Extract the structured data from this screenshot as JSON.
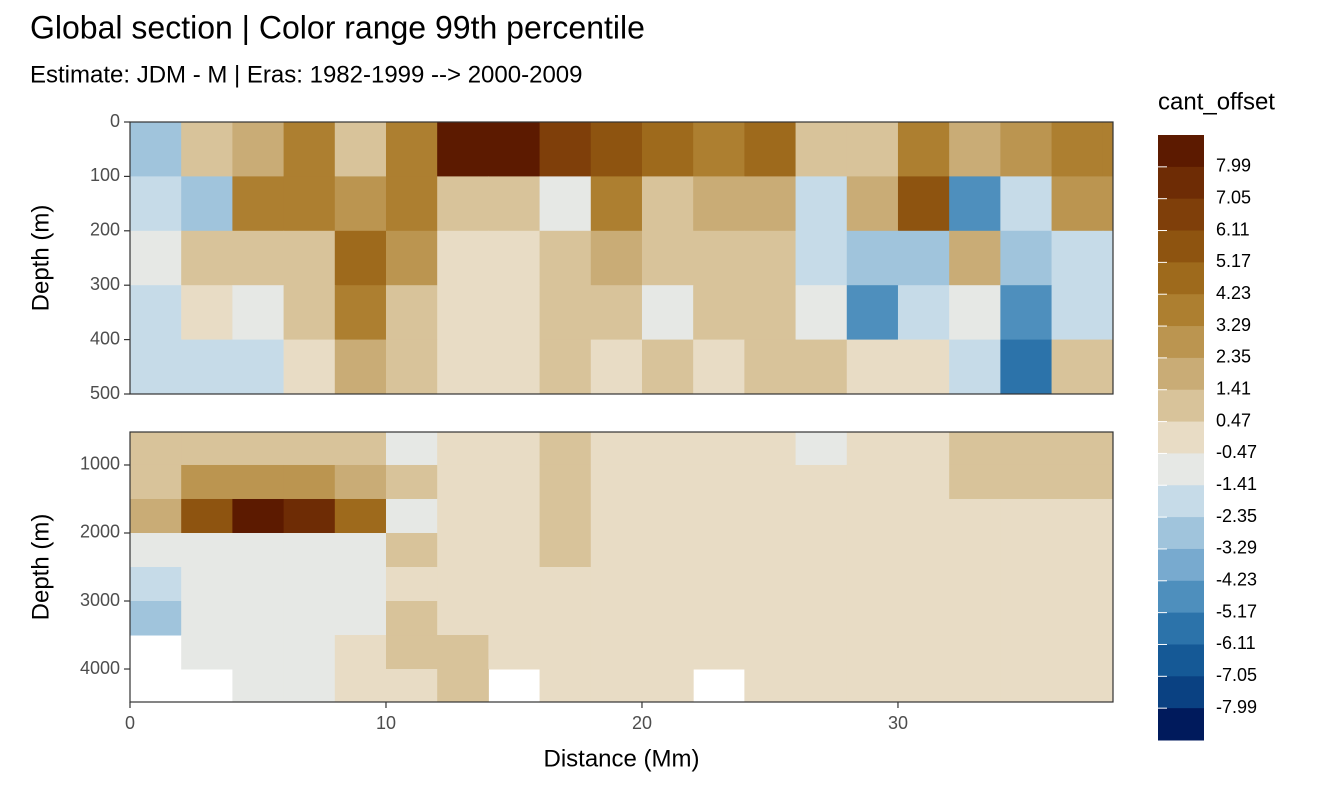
{
  "chart_data": [
    {
      "type": "contour",
      "title": "Global section | Color range 99th percentile",
      "subtitle": "Estimate: JDM - M | Eras: 1982-1999 --> 2000-2009",
      "ylabel": "Depth (m)",
      "xlim": [
        0,
        38.4
      ],
      "ylim": [
        500,
        0
      ],
      "yticks": [
        0,
        100,
        200,
        300,
        400,
        500
      ],
      "legend": {
        "title": "cant_offset",
        "levels": [
          7.99,
          7.05,
          6.11,
          5.17,
          4.23,
          3.29,
          2.35,
          1.41,
          0.47,
          -0.47,
          -1.41,
          -2.35,
          -3.29,
          -4.23,
          -5.17,
          -6.11,
          -7.05,
          -7.99
        ],
        "colors": [
          "#5c1a00",
          "#6e2c05",
          "#7f3f0a",
          "#8e5410",
          "#9e6a1c",
          "#ad7f30",
          "#bb9550",
          "#c9ac76",
          "#d8c39a",
          "#e8dcc5",
          "#e6e8e5",
          "#c6dbe8",
          "#a0c4dc",
          "#78aacf",
          "#4e8fbd",
          "#2c73aa",
          "#155996",
          "#0a4182",
          "#001a5c"
        ]
      },
      "x": [
        1,
        3,
        5,
        7,
        9,
        11,
        13,
        15,
        17,
        19,
        21,
        23,
        25,
        27,
        29,
        31,
        33,
        35,
        37,
        39
      ],
      "y": [
        50,
        150,
        250,
        350,
        450
      ],
      "z": [
        [
          -3,
          1,
          1.5,
          4,
          1,
          4,
          8.5,
          8.5,
          6.5,
          5.5,
          4.5,
          3.5,
          4.5,
          1,
          1,
          3.5,
          2,
          3,
          3.5,
          3.5
        ],
        [
          -2,
          -2.5,
          3.5,
          4,
          3,
          3.5,
          1,
          1,
          -0.8,
          3.5,
          1,
          2,
          2,
          -2,
          2,
          5.5,
          -4.5,
          -2,
          3,
          3
        ],
        [
          -0.8,
          0.8,
          1,
          1,
          4.5,
          2.5,
          0,
          0,
          1,
          1.5,
          1,
          1,
          1,
          -2,
          -3,
          -3,
          2,
          -3,
          -2,
          -2
        ],
        [
          -1.5,
          0,
          -0.8,
          1,
          3.5,
          1,
          0,
          0,
          1,
          1,
          -0.8,
          1,
          1,
          -0.8,
          -5,
          -2,
          -0.8,
          -5,
          -2,
          -2
        ],
        [
          -1.5,
          -1.5,
          -2,
          0,
          2,
          1,
          0,
          0,
          1,
          0,
          1,
          0,
          1,
          1,
          0,
          0,
          -1.5,
          -6,
          1,
          1
        ]
      ]
    },
    {
      "type": "contour",
      "ylabel": "Depth (m)",
      "xlabel": "Distance (Mm)",
      "xlim": [
        0,
        38.4
      ],
      "xticks": [
        0,
        10,
        20,
        30
      ],
      "ylim": [
        4485,
        515
      ],
      "yticks": [
        1000,
        2000,
        3000,
        4000
      ],
      "x": [
        1,
        3,
        5,
        7,
        9,
        11,
        13,
        15,
        17,
        19,
        21,
        23,
        25,
        27,
        29,
        31,
        33,
        35,
        37,
        39
      ],
      "y": [
        750,
        1250,
        1750,
        2250,
        2750,
        3250,
        3750,
        4250
      ],
      "z": [
        [
          1,
          1,
          1,
          1,
          1,
          -0.8,
          0,
          0,
          1,
          0,
          0,
          0,
          0,
          -0.8,
          0,
          0,
          1,
          1,
          1,
          1
        ],
        [
          1,
          3,
          2.5,
          2.5,
          2,
          1,
          0,
          0,
          1,
          0,
          0,
          0,
          0,
          0,
          0,
          0,
          1,
          1,
          1,
          1
        ],
        [
          2,
          5.5,
          8.5,
          7.5,
          4.5,
          -0.8,
          0,
          0,
          1,
          0,
          0,
          0,
          0,
          0,
          0,
          0,
          0,
          0,
          0,
          0
        ],
        [
          -0.8,
          -0.8,
          -0.8,
          -0.8,
          -0.8,
          1,
          0,
          0,
          1,
          0,
          0,
          0,
          0,
          0,
          0,
          0,
          0,
          0,
          0,
          0
        ],
        [
          -2,
          -0.8,
          -0.8,
          -0.8,
          -0.8,
          0,
          0,
          0,
          0,
          0,
          0,
          0,
          0,
          0,
          0,
          0,
          0,
          0,
          0,
          0
        ],
        [
          -3,
          -0.8,
          -0.8,
          -0.8,
          -0.8,
          1,
          0,
          0,
          0,
          0,
          0,
          0,
          0,
          0,
          0,
          0,
          0,
          0,
          0,
          0
        ],
        [
          null,
          -0.8,
          -0.8,
          -0.8,
          0,
          1,
          1,
          0,
          0,
          0,
          0,
          0,
          0,
          0,
          0,
          0,
          0,
          0,
          0,
          0
        ],
        [
          null,
          null,
          -0.8,
          -0.8,
          0,
          0,
          1,
          null,
          0,
          0,
          0,
          null,
          0,
          0,
          0,
          0,
          0,
          0,
          0,
          0
        ]
      ]
    }
  ]
}
